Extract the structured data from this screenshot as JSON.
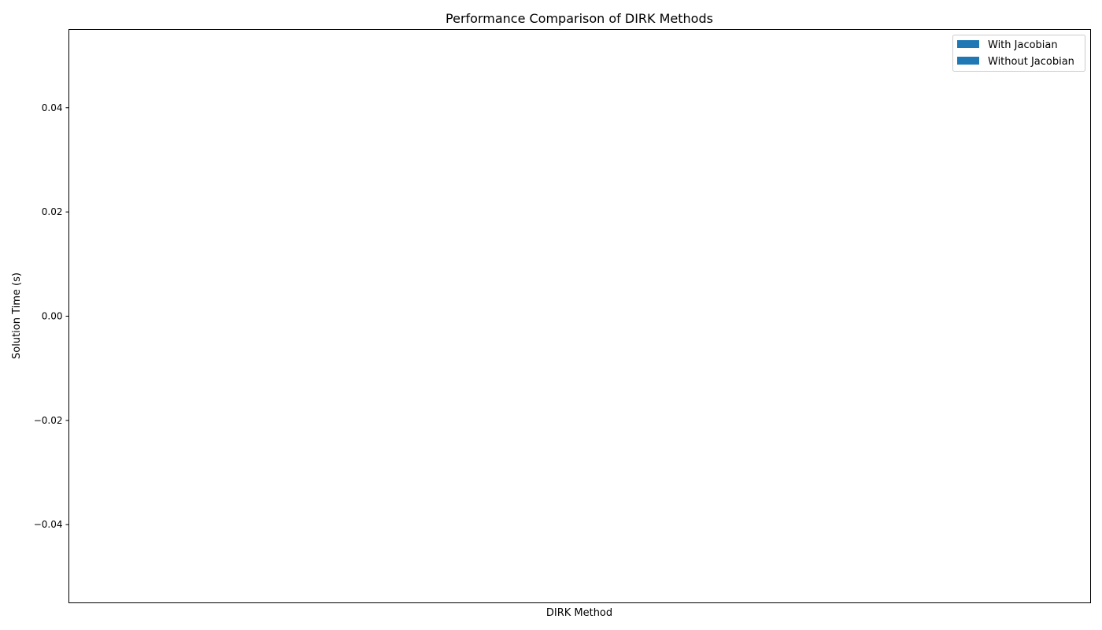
{
  "chart_data": {
    "type": "bar",
    "title": "Performance Comparison of DIRK Methods",
    "xlabel": "DIRK Method",
    "ylabel": "Solution Time (s)",
    "categories": [],
    "series": [
      {
        "name": "With Jacobian",
        "values": [],
        "color": "#1f77b4"
      },
      {
        "name": "Without Jacobian",
        "values": [],
        "color": "#1f77b4"
      }
    ],
    "ylim": [
      -0.055,
      0.055
    ],
    "yticks": [
      {
        "value": 0.04,
        "label": "0.04"
      },
      {
        "value": 0.02,
        "label": "0.02"
      },
      {
        "value": 0.0,
        "label": "0.00"
      },
      {
        "value": -0.02,
        "label": "−0.02"
      },
      {
        "value": -0.04,
        "label": "−0.04"
      }
    ],
    "grid": false,
    "legend_position": "top-right"
  }
}
